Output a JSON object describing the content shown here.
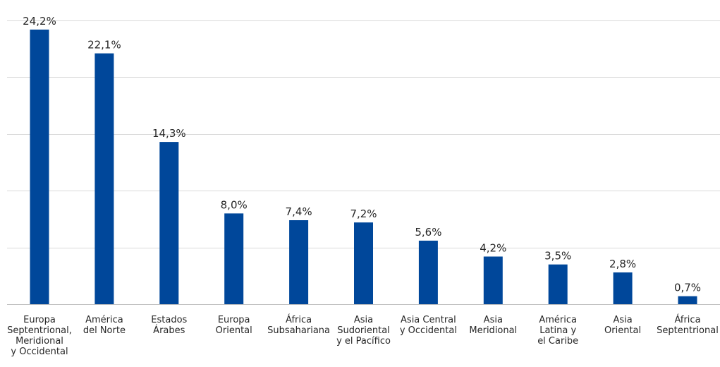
{
  "chart_data": {
    "type": "bar",
    "categories": [
      "Europa\nSeptentrional,\nMeridional\ny Occidental",
      "América\ndel Norte",
      "Estados\nÁrabes",
      "Europa\nOriental",
      "África\nSubsahariana",
      "Asia\nSudoriental\ny el Pacífico",
      "Asia Central\ny Occidental",
      "Asia\nMeridional",
      "América\nLatina y\nel Caribe",
      "Asia\nOriental",
      "África\nSeptentrional"
    ],
    "values": [
      24.2,
      22.1,
      14.3,
      8.0,
      7.4,
      7.2,
      5.6,
      4.2,
      3.5,
      2.8,
      0.7
    ],
    "value_labels": [
      "24,2%",
      "22,1%",
      "14,3%",
      "8,0%",
      "7,4%",
      "7,2%",
      "5,6%",
      "4,2%",
      "3,5%",
      "2,8%",
      "0,7%"
    ],
    "title": "",
    "xlabel": "",
    "ylabel": "",
    "ylim": [
      0,
      25
    ],
    "grid": true,
    "legend": "none",
    "bar_color": "#00479a"
  }
}
